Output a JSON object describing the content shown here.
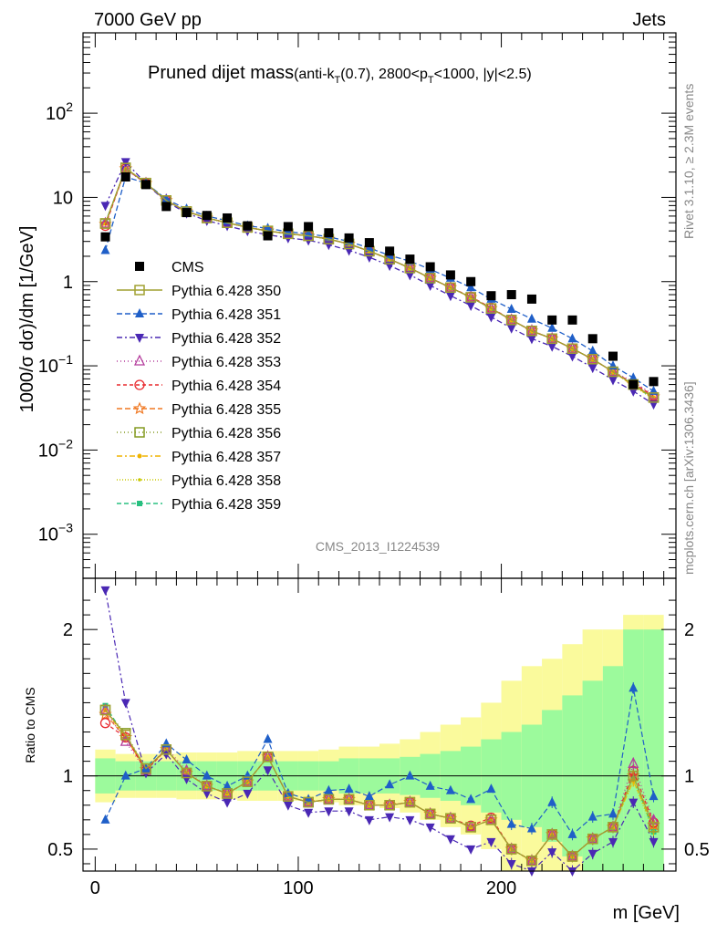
{
  "header": {
    "left": "7000 GeV pp",
    "right": "Jets"
  },
  "title": {
    "main": "Pruned dijet mass",
    "sub_prefix": "(anti-k",
    "sub_sub1": "T",
    "sub_mid": "(0.7), 2800<p",
    "sub_sub2": "T",
    "sub_suffix": "<1000, |y|<2.5)"
  },
  "side": {
    "rivet": "Rivet 3.1.10, ≥ 2.3M events",
    "mcplots": "mcplots.cern.ch [arXiv:1306.3436]"
  },
  "analysis_id": "CMS_2013_I1224539",
  "ylabel_top": "1000/σ dσ)/dm [1/GeV]",
  "ylabel_bottom": "Ratio to CMS",
  "xlabel": "m [GeV]",
  "colors": {
    "CMS": "#000000",
    "350": "#a0a030",
    "351": "#1f5fc8",
    "352": "#4a28b4",
    "353": "#b43c9c",
    "354": "#e8282d",
    "355": "#f07822",
    "356": "#849a20",
    "357": "#f0b400",
    "358": "#c8c800",
    "359": "#28c080",
    "band_inner": "#9cfa9c",
    "band_outer": "#fafa9c"
  },
  "chart_data": {
    "type": "scatter",
    "x": [
      5,
      15,
      25,
      35,
      45,
      55,
      65,
      75,
      85,
      95,
      105,
      115,
      125,
      135,
      145,
      155,
      165,
      175,
      185,
      195,
      205,
      215,
      225,
      235,
      245,
      255,
      265,
      275
    ],
    "top_panel": {
      "yscale": "log",
      "ylim": [
        0.0003,
        900
      ],
      "xlim": [
        -6,
        286
      ],
      "yticks": [
        "10⁻³",
        "10⁻²",
        "10⁻¹",
        "1",
        "10",
        "10²"
      ]
    },
    "bottom_panel": {
      "ylim": [
        0.35,
        2.35
      ],
      "yticks": [
        "0.5",
        "1",
        "2"
      ]
    },
    "xticks": [
      "0",
      "100",
      "200"
    ],
    "series": [
      {
        "name": "CMS",
        "key": "CMS",
        "marker": "square-filled",
        "dash": "",
        "values": [
          3.4,
          17.5,
          14.2,
          7.8,
          6.6,
          6.1,
          5.7,
          4.6,
          3.5,
          4.5,
          4.5,
          3.8,
          3.3,
          2.9,
          2.3,
          1.85,
          1.5,
          1.2,
          1.0,
          0.68,
          0.7,
          0.62,
          0.35,
          0.35,
          0.21,
          0.13,
          0.06,
          0.065
        ]
      },
      {
        "name": "Pythia 6.428 350",
        "key": "350",
        "marker": "square-open",
        "dash": "",
        "values": [
          4.9,
          22.3,
          14.8,
          9.2,
          6.8,
          5.7,
          5.0,
          4.4,
          4.0,
          3.7,
          3.5,
          3.2,
          2.8,
          2.3,
          1.85,
          1.45,
          1.1,
          0.85,
          0.65,
          0.48,
          0.35,
          0.26,
          0.21,
          0.16,
          0.12,
          0.085,
          0.06,
          0.042
        ]
      },
      {
        "name": "Pythia 6.428 351",
        "key": "351",
        "marker": "triangle-up-filled",
        "dash": "6,3",
        "values": [
          2.35,
          17.5,
          14.8,
          9.5,
          7.3,
          6.0,
          5.3,
          4.6,
          4.3,
          3.9,
          3.7,
          3.4,
          3.0,
          2.5,
          2.05,
          1.75,
          1.4,
          1.1,
          0.85,
          0.62,
          0.47,
          0.36,
          0.28,
          0.21,
          0.15,
          0.1,
          0.072,
          0.05
        ]
      },
      {
        "name": "Pythia 6.428 352",
        "key": "352",
        "marker": "triangle-down-filled",
        "dash": "6,3,2,3",
        "values": [
          8.0,
          26.5,
          14.5,
          8.9,
          6.5,
          5.3,
          4.6,
          4.0,
          3.6,
          3.3,
          3.1,
          2.75,
          2.35,
          1.95,
          1.55,
          1.2,
          0.9,
          0.68,
          0.52,
          0.38,
          0.28,
          0.21,
          0.17,
          0.13,
          0.095,
          0.068,
          0.05,
          0.035
        ]
      },
      {
        "name": "Pythia 6.428 353",
        "key": "353",
        "marker": "triangle-up-open",
        "dash": "1,3",
        "values": [
          4.9,
          21.5,
          14.6,
          9.3,
          6.9,
          5.7,
          5.0,
          4.4,
          4.0,
          3.7,
          3.5,
          3.2,
          2.8,
          2.3,
          1.85,
          1.45,
          1.1,
          0.85,
          0.65,
          0.48,
          0.35,
          0.26,
          0.21,
          0.16,
          0.12,
          0.085,
          0.065,
          0.045
        ]
      },
      {
        "name": "Pythia 6.428 354",
        "key": "354",
        "marker": "circle-open",
        "dash": "4,3",
        "values": [
          4.6,
          22.0,
          14.6,
          9.2,
          6.8,
          5.7,
          5.0,
          4.4,
          4.0,
          3.7,
          3.5,
          3.2,
          2.8,
          2.3,
          1.85,
          1.45,
          1.1,
          0.85,
          0.66,
          0.49,
          0.35,
          0.26,
          0.21,
          0.16,
          0.12,
          0.085,
          0.062,
          0.044
        ]
      },
      {
        "name": "Pythia 6.428 355",
        "key": "355",
        "marker": "star-open",
        "dash": "6,3",
        "values": [
          4.8,
          22.0,
          14.7,
          9.2,
          6.8,
          5.7,
          5.0,
          4.4,
          4.0,
          3.7,
          3.5,
          3.2,
          2.8,
          2.3,
          1.85,
          1.45,
          1.1,
          0.85,
          0.65,
          0.48,
          0.35,
          0.26,
          0.21,
          0.16,
          0.12,
          0.085,
          0.06,
          0.043
        ]
      },
      {
        "name": "Pythia 6.428 356",
        "key": "356",
        "marker": "square-open",
        "dash": "1,3",
        "values": [
          4.9,
          22.5,
          14.8,
          9.2,
          6.8,
          5.7,
          5.0,
          4.4,
          4.0,
          3.7,
          3.5,
          3.2,
          2.8,
          2.3,
          1.85,
          1.45,
          1.1,
          0.85,
          0.65,
          0.48,
          0.35,
          0.26,
          0.21,
          0.16,
          0.12,
          0.085,
          0.06,
          0.042
        ]
      },
      {
        "name": "Pythia 6.428 357",
        "key": "357",
        "marker": "dot-filled",
        "dash": "6,3,2,3",
        "values": [
          4.9,
          22.0,
          14.7,
          9.2,
          6.8,
          5.7,
          5.0,
          4.4,
          4.0,
          3.7,
          3.5,
          3.2,
          2.8,
          2.3,
          1.85,
          1.45,
          1.1,
          0.85,
          0.65,
          0.48,
          0.35,
          0.26,
          0.21,
          0.16,
          0.12,
          0.085,
          0.058,
          0.042
        ]
      },
      {
        "name": "Pythia 6.428 358",
        "key": "358",
        "marker": "dot-small",
        "dash": "1,2",
        "values": [
          4.9,
          22.0,
          14.7,
          9.2,
          6.8,
          5.7,
          5.0,
          4.4,
          4.0,
          3.7,
          3.5,
          3.2,
          2.8,
          2.3,
          1.85,
          1.45,
          1.1,
          0.85,
          0.65,
          0.48,
          0.35,
          0.26,
          0.21,
          0.16,
          0.12,
          0.085,
          0.058,
          0.04
        ]
      },
      {
        "name": "Pythia 6.428 359",
        "key": "359",
        "marker": "square-small-filled",
        "dash": "5,3",
        "values": [
          5.0,
          22.0,
          14.8,
          9.2,
          6.8,
          5.7,
          5.0,
          4.4,
          4.0,
          3.7,
          3.5,
          3.2,
          2.8,
          2.3,
          1.85,
          1.45,
          1.1,
          0.85,
          0.65,
          0.48,
          0.35,
          0.26,
          0.21,
          0.16,
          0.12,
          0.085,
          0.06,
          0.04
        ]
      }
    ],
    "ratios": {
      "350": [
        1.45,
        1.28,
        1.05,
        1.18,
        1.02,
        0.93,
        0.88,
        0.96,
        1.13,
        0.86,
        0.82,
        0.84,
        0.84,
        0.8,
        0.8,
        0.82,
        0.74,
        0.71,
        0.65,
        0.7,
        0.5,
        0.42,
        0.6,
        0.45,
        0.57,
        0.65,
        1.0,
        0.65
      ],
      "351": [
        0.7,
        1.0,
        1.05,
        1.22,
        1.11,
        1.0,
        0.93,
        1.0,
        1.25,
        0.88,
        0.84,
        0.9,
        0.91,
        0.86,
        0.94,
        1.0,
        0.93,
        0.9,
        0.84,
        0.91,
        0.67,
        0.64,
        0.82,
        0.6,
        0.72,
        0.74,
        1.6,
        0.86
      ]
    },
    "ratio_generic": [
      1.45,
      1.28,
      1.05,
      1.18,
      1.02,
      0.93,
      0.88,
      0.96,
      1.13,
      0.86,
      0.82,
      0.84,
      0.84,
      0.8,
      0.8,
      0.82,
      0.74,
      0.71,
      0.65,
      0.7,
      0.5,
      0.42,
      0.6,
      0.45,
      0.57,
      0.65,
      1.0,
      0.65
    ],
    "ratio_352": [
      2.27,
      1.5,
      1.02,
      1.15,
      0.98,
      0.88,
      0.82,
      0.88,
      1.04,
      0.8,
      0.75,
      0.76,
      0.76,
      0.7,
      0.72,
      0.7,
      0.65,
      0.57,
      0.5,
      0.55,
      0.4,
      0.35,
      0.48,
      0.35,
      0.47,
      0.55,
      0.82,
      0.55
    ],
    "band": {
      "inner": [
        0.12,
        0.1,
        0.1,
        0.1,
        0.1,
        0.1,
        0.1,
        0.1,
        0.1,
        0.1,
        0.1,
        0.1,
        0.12,
        0.12,
        0.12,
        0.13,
        0.15,
        0.17,
        0.2,
        0.25,
        0.3,
        0.35,
        0.45,
        0.55,
        0.65,
        0.75,
        1.0,
        1.0
      ],
      "outer": [
        0.18,
        0.15,
        0.15,
        0.15,
        0.16,
        0.16,
        0.16,
        0.17,
        0.17,
        0.17,
        0.17,
        0.18,
        0.2,
        0.2,
        0.22,
        0.25,
        0.3,
        0.35,
        0.4,
        0.5,
        0.65,
        0.75,
        0.8,
        0.9,
        1.0,
        1.0,
        1.1,
        1.1
      ]
    }
  }
}
